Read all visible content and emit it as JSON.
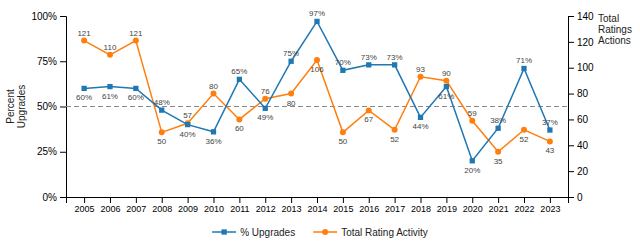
{
  "chart_data": {
    "type": "line",
    "ylabel": "Percent\nUpgrades",
    "y2label": "Total\nRatings\nActions",
    "x": [
      2005,
      2006,
      2007,
      2008,
      2009,
      2010,
      2011,
      2012,
      2013,
      2014,
      2015,
      2016,
      2017,
      2018,
      2019,
      2020,
      2021,
      2022,
      2023
    ],
    "xlim": [
      2004.3,
      2023.7
    ],
    "xticks": [
      2005,
      2006,
      2007,
      2008,
      2009,
      2010,
      2011,
      2012,
      2013,
      2014,
      2015,
      2016,
      2017,
      2018,
      2019,
      2020,
      2021,
      2022,
      2023
    ],
    "ylim": [
      0,
      100
    ],
    "yticks": [
      {
        "value": 0,
        "label": "0%"
      },
      {
        "value": 25,
        "label": "25%"
      },
      {
        "value": 50,
        "label": "50%"
      },
      {
        "value": 75,
        "label": "75%"
      },
      {
        "value": 100,
        "label": "100%"
      }
    ],
    "y2lim": [
      0,
      140
    ],
    "y2ticks": [
      0,
      20,
      40,
      60,
      80,
      100,
      120,
      140
    ],
    "series": [
      {
        "name": "% Upgrades",
        "marker": "square",
        "values": [
          60,
          61,
          60,
          48,
          40,
          36,
          65,
          49,
          75,
          97,
          70,
          73,
          73,
          44,
          61,
          20,
          38,
          71,
          37
        ],
        "value_labels": [
          "60%",
          "61%",
          "60%",
          "48%",
          "40%",
          "36%",
          "65%",
          "49%",
          "75%",
          "97%",
          "70%",
          "73%",
          "73%",
          "44%",
          "61%",
          "20%",
          "38%",
          "71%",
          "37%"
        ]
      },
      {
        "name": "Total Rating Activity",
        "marker": "circle",
        "axis": "y2",
        "values": [
          121,
          110,
          121,
          50,
          57,
          80,
          60,
          76,
          80,
          106,
          50,
          67,
          52,
          93,
          90,
          59,
          35,
          52,
          43
        ]
      }
    ],
    "reference_line": {
      "value": 50,
      "line_style": "dashed"
    },
    "data_labels": true,
    "grid": false,
    "legend": "bottom"
  }
}
